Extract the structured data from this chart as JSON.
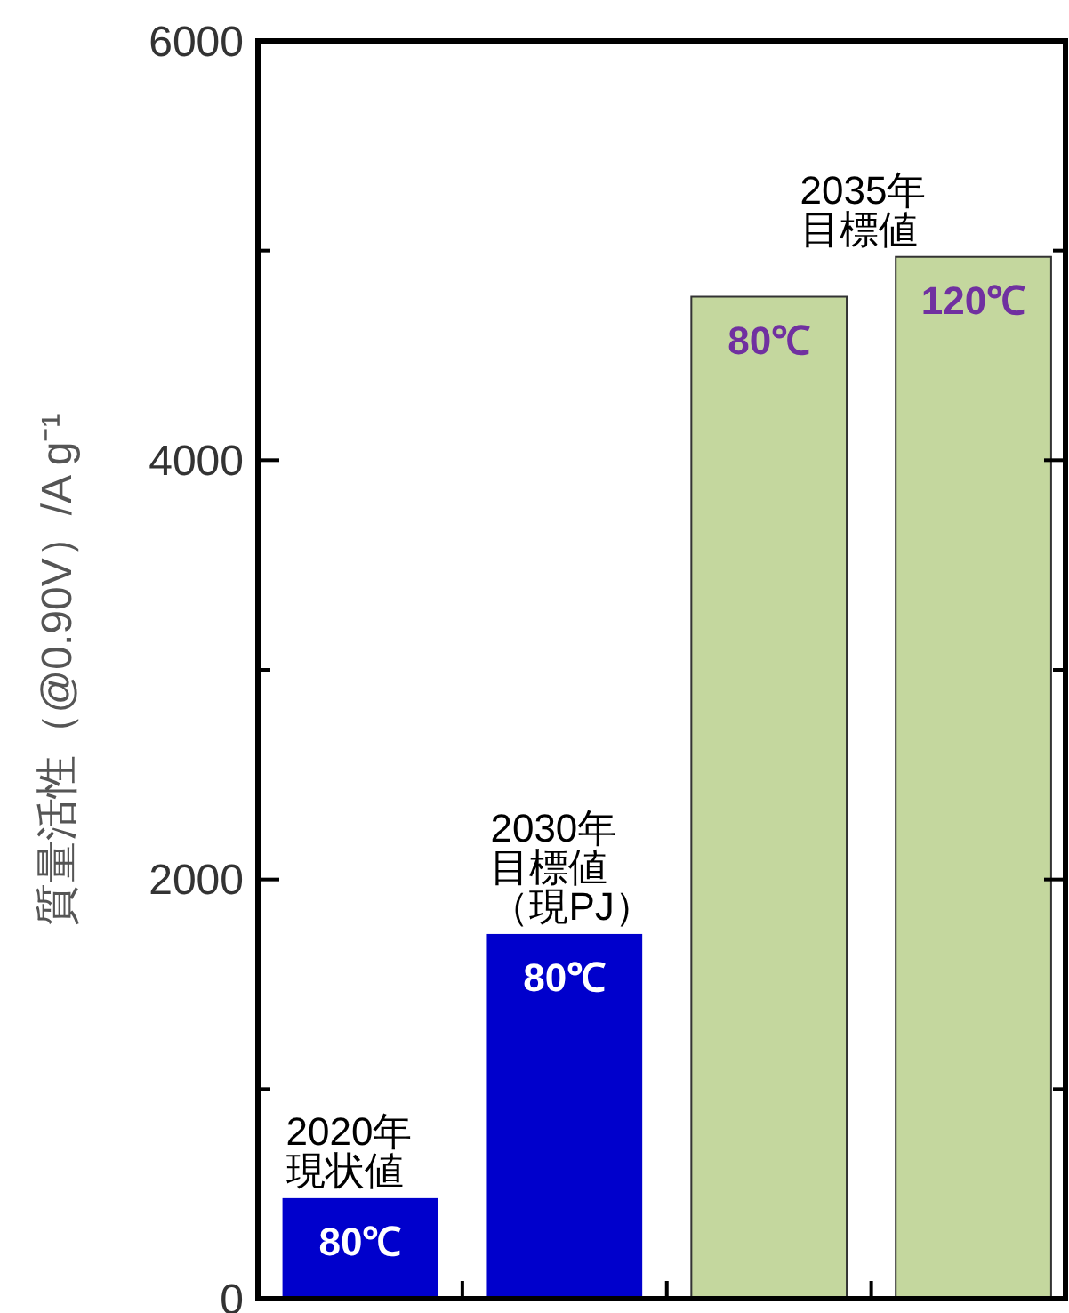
{
  "chart_data": {
    "type": "bar",
    "ylabel": "質量活性（@0.90V）/A g⁻¹",
    "categories": [
      null,
      null,
      null,
      null
    ],
    "values": [
      480,
      1740,
      4780,
      4970
    ],
    "colors": [
      "#0000cc",
      "#0000cc",
      "#c4d79e",
      "#c4d79e"
    ],
    "ylim": [
      0,
      6000
    ],
    "yticks": [
      0,
      {
        "value": 1000,
        "label": null
      },
      2000,
      {
        "value": 3000,
        "label": null
      },
      4000,
      {
        "value": 5000,
        "label": null
      },
      6000
    ],
    "annotations": [
      {
        "text": "80℃",
        "y": 480
      },
      {
        "text": "80℃",
        "y": 1740
      },
      {
        "text": "80℃",
        "y": 4780
      },
      {
        "text": "120℃",
        "y": 4970
      },
      "2020年",
      "現状値",
      "2030年",
      "目標値",
      "（現PJ）",
      "2035年",
      "目標値"
    ],
    "grid": false
  }
}
